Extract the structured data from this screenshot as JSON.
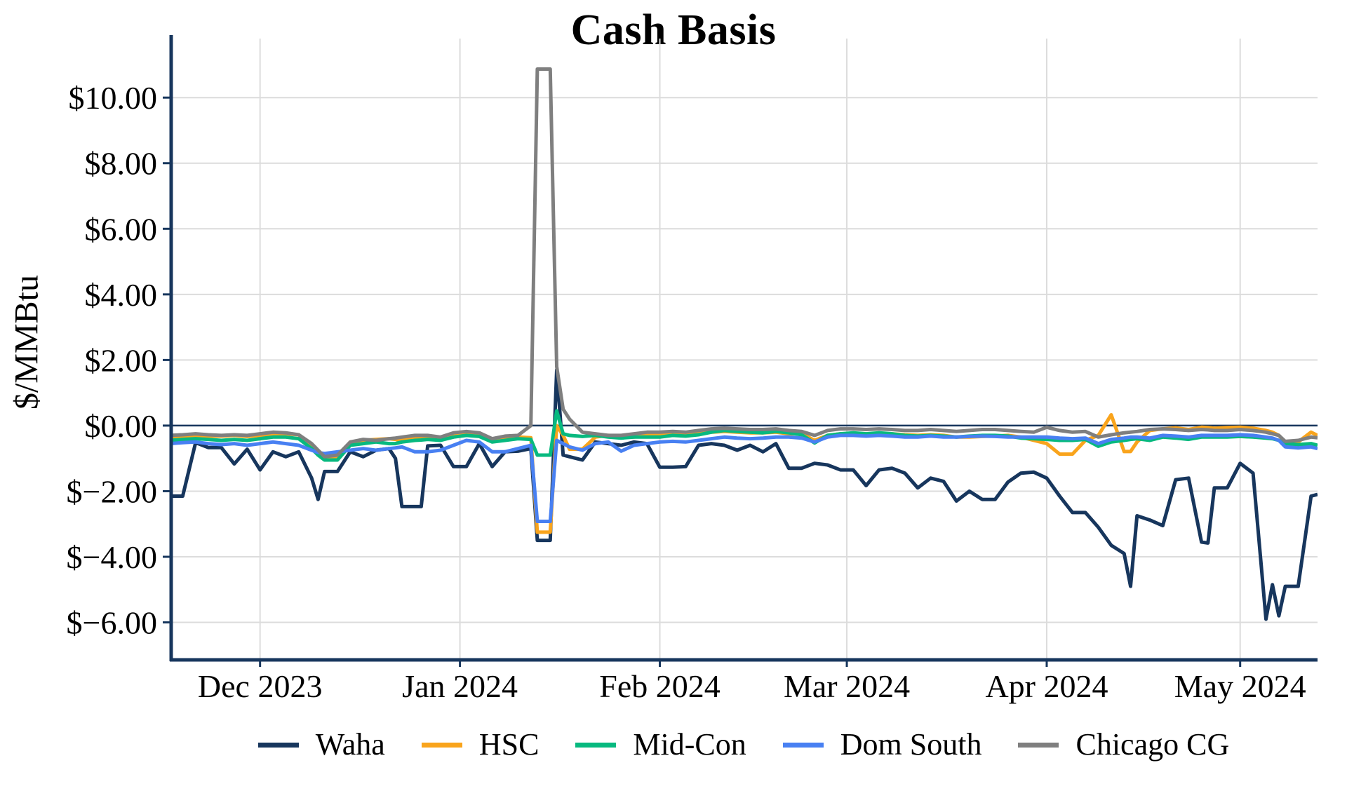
{
  "title": "Cash Basis",
  "y_axis_label": "$/MMBtu",
  "colors": {
    "axis": "#17365D",
    "zero_line": "#17365D",
    "grid": "#DCDCDC",
    "background": "#FFFFFF",
    "waha": "#17365D",
    "hsc": "#F9A41C",
    "mid_con": "#07B97F",
    "dom_south": "#4880F2",
    "chicago_cg": "#7F7F7F"
  },
  "chart_data": {
    "type": "line",
    "title": "Cash Basis",
    "xlabel": "",
    "ylabel": "$/MMBtu",
    "grid": true,
    "legend_position": "bottom",
    "ylim": [
      -7.1,
      11.8
    ],
    "yticks": [
      10,
      8,
      6,
      4,
      2,
      0,
      -2,
      -4,
      -6
    ],
    "ytick_labels": [
      "$10.00",
      "$8.00",
      "$6.00",
      "$4.00",
      "$2.00",
      "$0.00",
      "$−2.00",
      "$−4.00",
      "$−6.00"
    ],
    "xtick_labels": [
      "Dec 2023",
      "Jan 2024",
      "Feb 2024",
      "Mar 2024",
      "Apr 2024",
      "May 2024"
    ],
    "xtick_days": [
      14,
      45,
      76,
      105,
      136,
      166
    ],
    "x_range_days": [
      0,
      178
    ],
    "x_dates": [
      "2023-11-17",
      "2023-11-19",
      "2023-11-21",
      "2023-11-23",
      "2023-11-25",
      "2023-11-27",
      "2023-11-29",
      "2023-12-01",
      "2023-12-03",
      "2023-12-05",
      "2023-12-07",
      "2023-12-09",
      "2023-12-10",
      "2023-12-11",
      "2023-12-13",
      "2023-12-15",
      "2023-12-17",
      "2023-12-19",
      "2023-12-21",
      "2023-12-22",
      "2023-12-23",
      "2023-12-25",
      "2023-12-26",
      "2023-12-27",
      "2023-12-29",
      "2023-12-31",
      "2024-01-02",
      "2024-01-04",
      "2024-01-06",
      "2024-01-08",
      "2024-01-10",
      "2024-01-12",
      "2024-01-13",
      "2024-01-15",
      "2024-01-16",
      "2024-01-17",
      "2024-01-18",
      "2024-01-20",
      "2024-01-22",
      "2024-01-24",
      "2024-01-26",
      "2024-01-28",
      "2024-01-30",
      "2024-02-01",
      "2024-02-03",
      "2024-02-05",
      "2024-02-07",
      "2024-02-09",
      "2024-02-11",
      "2024-02-13",
      "2024-02-15",
      "2024-02-17",
      "2024-02-19",
      "2024-02-21",
      "2024-02-23",
      "2024-02-25",
      "2024-02-27",
      "2024-02-29",
      "2024-03-02",
      "2024-03-04",
      "2024-03-06",
      "2024-03-08",
      "2024-03-10",
      "2024-03-12",
      "2024-03-14",
      "2024-03-16",
      "2024-03-18",
      "2024-03-20",
      "2024-03-22",
      "2024-03-24",
      "2024-03-26",
      "2024-03-28",
      "2024-03-30",
      "2024-04-01",
      "2024-04-03",
      "2024-04-05",
      "2024-04-07",
      "2024-04-09",
      "2024-04-11",
      "2024-04-13",
      "2024-04-14",
      "2024-04-15",
      "2024-04-17",
      "2024-04-19",
      "2024-04-21",
      "2024-04-23",
      "2024-04-25",
      "2024-04-26",
      "2024-04-27",
      "2024-04-29",
      "2024-05-01",
      "2024-05-03",
      "2024-05-05",
      "2024-05-06",
      "2024-05-07",
      "2024-05-08",
      "2024-05-10",
      "2024-05-12",
      "2024-05-13"
    ],
    "x_days": [
      0,
      2,
      4,
      6,
      8,
      10,
      12,
      14,
      16,
      18,
      20,
      22,
      23,
      24,
      26,
      28,
      30,
      32,
      34,
      35,
      36,
      38,
      39,
      40,
      42,
      44,
      46,
      48,
      50,
      52,
      54,
      56,
      57,
      59,
      60,
      61,
      62,
      64,
      66,
      68,
      70,
      72,
      74,
      76,
      78,
      80,
      82,
      84,
      86,
      88,
      90,
      92,
      94,
      96,
      98,
      100,
      102,
      104,
      106,
      108,
      110,
      112,
      114,
      116,
      118,
      120,
      122,
      124,
      126,
      128,
      130,
      132,
      134,
      136,
      138,
      140,
      142,
      144,
      146,
      148,
      149,
      150,
      152,
      154,
      156,
      158,
      160,
      161,
      162,
      164,
      166,
      168,
      170,
      171,
      172,
      173,
      175,
      177,
      178
    ],
    "series": [
      {
        "name": "Waha",
        "color": "#17365D",
        "values": [
          -2.15,
          -2.15,
          -0.52,
          -0.67,
          -0.67,
          -1.17,
          -0.72,
          -1.35,
          -0.8,
          -0.95,
          -0.8,
          -1.6,
          -2.25,
          -1.4,
          -1.4,
          -0.8,
          -0.95,
          -0.75,
          -0.7,
          -1.0,
          -2.47,
          -2.47,
          -2.47,
          -0.62,
          -0.6,
          -1.25,
          -1.25,
          -0.55,
          -1.25,
          -0.8,
          -0.78,
          -0.7,
          -3.5,
          -3.5,
          1.7,
          -0.9,
          -0.95,
          -1.05,
          -0.5,
          -0.55,
          -0.6,
          -0.5,
          -0.55,
          -1.27,
          -1.27,
          -1.25,
          -0.6,
          -0.55,
          -0.6,
          -0.75,
          -0.6,
          -0.8,
          -0.55,
          -1.3,
          -1.3,
          -1.15,
          -1.2,
          -1.35,
          -1.35,
          -1.83,
          -1.35,
          -1.3,
          -1.45,
          -1.9,
          -1.6,
          -1.7,
          -2.3,
          -2.0,
          -2.25,
          -2.25,
          -1.72,
          -1.45,
          -1.42,
          -1.6,
          -2.15,
          -2.65,
          -2.65,
          -3.1,
          -3.65,
          -3.9,
          -4.9,
          -2.75,
          -2.88,
          -3.05,
          -1.65,
          -1.6,
          -3.55,
          -3.58,
          -1.9,
          -1.9,
          -1.15,
          -1.45,
          -5.9,
          -4.85,
          -5.8,
          -4.9,
          -4.9,
          -2.15,
          -2.1
        ]
      },
      {
        "name": "HSC",
        "color": "#F9A41C",
        "values": [
          -0.35,
          -0.33,
          -0.3,
          -0.32,
          -0.32,
          -0.3,
          -0.33,
          -0.3,
          -0.28,
          -0.25,
          -0.28,
          -0.6,
          -0.85,
          -1.0,
          -0.95,
          -0.5,
          -0.45,
          -0.42,
          -0.4,
          -0.42,
          -0.45,
          -0.4,
          -0.38,
          -0.35,
          -0.38,
          -0.3,
          -0.27,
          -0.3,
          -0.42,
          -0.35,
          -0.35,
          -0.37,
          -3.25,
          -3.25,
          0.0,
          -0.3,
          -0.72,
          -0.72,
          -0.35,
          -0.3,
          -0.32,
          -0.35,
          -0.3,
          -0.3,
          -0.28,
          -0.3,
          -0.25,
          -0.2,
          -0.18,
          -0.2,
          -0.22,
          -0.22,
          -0.2,
          -0.25,
          -0.25,
          -0.45,
          -0.3,
          -0.25,
          -0.25,
          -0.28,
          -0.25,
          -0.25,
          -0.28,
          -0.3,
          -0.28,
          -0.3,
          -0.35,
          -0.35,
          -0.33,
          -0.32,
          -0.3,
          -0.35,
          -0.45,
          -0.55,
          -0.87,
          -0.87,
          -0.45,
          -0.3,
          0.33,
          -0.79,
          -0.79,
          -0.5,
          -0.15,
          -0.1,
          -0.07,
          -0.12,
          -0.05,
          -0.06,
          -0.08,
          -0.06,
          -0.05,
          -0.08,
          -0.15,
          -0.2,
          -0.3,
          -0.52,
          -0.5,
          -0.2,
          -0.3
        ]
      },
      {
        "name": "Mid-Con",
        "color": "#07B97F",
        "values": [
          -0.45,
          -0.42,
          -0.4,
          -0.42,
          -0.45,
          -0.42,
          -0.45,
          -0.4,
          -0.35,
          -0.35,
          -0.4,
          -0.7,
          -0.9,
          -1.05,
          -1.05,
          -0.6,
          -0.55,
          -0.5,
          -0.55,
          -0.55,
          -0.5,
          -0.45,
          -0.44,
          -0.42,
          -0.45,
          -0.35,
          -0.3,
          -0.33,
          -0.5,
          -0.45,
          -0.4,
          -0.42,
          -0.9,
          -0.9,
          0.45,
          -0.25,
          -0.3,
          -0.33,
          -0.3,
          -0.35,
          -0.38,
          -0.35,
          -0.35,
          -0.35,
          -0.3,
          -0.32,
          -0.28,
          -0.2,
          -0.15,
          -0.18,
          -0.2,
          -0.22,
          -0.18,
          -0.22,
          -0.28,
          -0.53,
          -0.3,
          -0.25,
          -0.22,
          -0.25,
          -0.22,
          -0.25,
          -0.3,
          -0.32,
          -0.3,
          -0.32,
          -0.35,
          -0.32,
          -0.3,
          -0.3,
          -0.32,
          -0.38,
          -0.4,
          -0.42,
          -0.45,
          -0.45,
          -0.42,
          -0.63,
          -0.5,
          -0.45,
          -0.42,
          -0.4,
          -0.45,
          -0.35,
          -0.38,
          -0.42,
          -0.35,
          -0.35,
          -0.35,
          -0.35,
          -0.33,
          -0.35,
          -0.38,
          -0.4,
          -0.45,
          -0.55,
          -0.58,
          -0.55,
          -0.6
        ]
      },
      {
        "name": "Dom South",
        "color": "#4880F2",
        "values": [
          -0.55,
          -0.52,
          -0.5,
          -0.55,
          -0.58,
          -0.55,
          -0.6,
          -0.55,
          -0.5,
          -0.55,
          -0.6,
          -0.75,
          -0.82,
          -0.85,
          -0.8,
          -0.75,
          -0.7,
          -0.75,
          -0.7,
          -0.68,
          -0.65,
          -0.8,
          -0.8,
          -0.8,
          -0.75,
          -0.6,
          -0.45,
          -0.5,
          -0.8,
          -0.8,
          -0.7,
          -0.6,
          -2.92,
          -2.92,
          -0.45,
          -0.55,
          -0.65,
          -0.75,
          -0.55,
          -0.5,
          -0.78,
          -0.6,
          -0.55,
          -0.5,
          -0.48,
          -0.5,
          -0.45,
          -0.4,
          -0.35,
          -0.38,
          -0.4,
          -0.38,
          -0.35,
          -0.35,
          -0.38,
          -0.5,
          -0.35,
          -0.3,
          -0.3,
          -0.32,
          -0.3,
          -0.32,
          -0.35,
          -0.35,
          -0.32,
          -0.35,
          -0.35,
          -0.33,
          -0.32,
          -0.33,
          -0.35,
          -0.35,
          -0.35,
          -0.35,
          -0.38,
          -0.4,
          -0.38,
          -0.55,
          -0.42,
          -0.38,
          -0.35,
          -0.35,
          -0.38,
          -0.3,
          -0.32,
          -0.35,
          -0.3,
          -0.3,
          -0.3,
          -0.3,
          -0.28,
          -0.3,
          -0.35,
          -0.38,
          -0.45,
          -0.65,
          -0.68,
          -0.65,
          -0.7
        ]
      },
      {
        "name": "Chicago CG",
        "color": "#7F7F7F",
        "values": [
          -0.3,
          -0.28,
          -0.25,
          -0.28,
          -0.3,
          -0.28,
          -0.3,
          -0.25,
          -0.2,
          -0.22,
          -0.28,
          -0.55,
          -0.75,
          -0.95,
          -0.9,
          -0.5,
          -0.42,
          -0.45,
          -0.4,
          -0.38,
          -0.35,
          -0.3,
          -0.3,
          -0.3,
          -0.35,
          -0.22,
          -0.18,
          -0.22,
          -0.4,
          -0.32,
          -0.3,
          0.0,
          10.87,
          10.87,
          1.8,
          0.5,
          0.2,
          -0.2,
          -0.25,
          -0.3,
          -0.3,
          -0.25,
          -0.2,
          -0.2,
          -0.18,
          -0.2,
          -0.15,
          -0.1,
          -0.08,
          -0.1,
          -0.12,
          -0.12,
          -0.1,
          -0.15,
          -0.18,
          -0.3,
          -0.15,
          -0.1,
          -0.1,
          -0.12,
          -0.1,
          -0.12,
          -0.15,
          -0.15,
          -0.12,
          -0.15,
          -0.18,
          -0.15,
          -0.12,
          -0.12,
          -0.15,
          -0.18,
          -0.2,
          -0.05,
          -0.15,
          -0.2,
          -0.18,
          -0.35,
          -0.28,
          -0.22,
          -0.2,
          -0.18,
          -0.12,
          -0.1,
          -0.12,
          -0.15,
          -0.12,
          -0.13,
          -0.15,
          -0.15,
          -0.12,
          -0.15,
          -0.2,
          -0.25,
          -0.3,
          -0.48,
          -0.45,
          -0.35,
          -0.37
        ]
      }
    ]
  }
}
